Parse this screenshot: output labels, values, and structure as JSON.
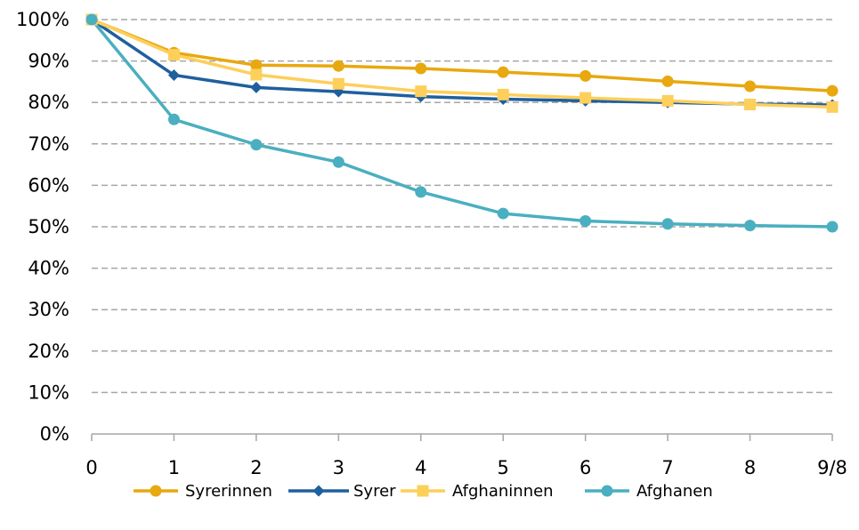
{
  "chart_data": {
    "type": "line",
    "categories": [
      "0",
      "1",
      "2",
      "3",
      "4",
      "5",
      "6",
      "7",
      "8",
      "9/8"
    ],
    "ylim": [
      0,
      100
    ],
    "y_unit": "%",
    "yticks": [
      "0%",
      "10%",
      "20%",
      "30%",
      "40%",
      "50%",
      "60%",
      "70%",
      "80%",
      "90%",
      "100%"
    ],
    "grid": "horizontal dashed",
    "legend_position": "bottom",
    "series": [
      {
        "name": "Syrerinnen",
        "color": "#E8A80F",
        "marker": "circle",
        "values": [
          100,
          92,
          89,
          88.8,
          88.2,
          87.3,
          86.4,
          85.1,
          83.9,
          82.8
        ]
      },
      {
        "name": "Syrer",
        "color": "#1F5F9E",
        "marker": "diamond",
        "values": [
          100,
          86.6,
          83.6,
          82.6,
          81.4,
          80.8,
          80.4,
          80,
          79.6,
          79.4
        ]
      },
      {
        "name": "Afghaninnen",
        "color": "#FDCF5B",
        "marker": "square",
        "values": [
          100,
          91.5,
          86.7,
          84.5,
          82.7,
          81.9,
          81.1,
          80.4,
          79.5,
          78.9
        ]
      },
      {
        "name": "Afghanen",
        "color": "#4AAFC0",
        "marker": "circle",
        "values": [
          100,
          75.9,
          69.8,
          65.6,
          58.4,
          53.2,
          51.4,
          50.7,
          50.3,
          50
        ]
      }
    ]
  }
}
